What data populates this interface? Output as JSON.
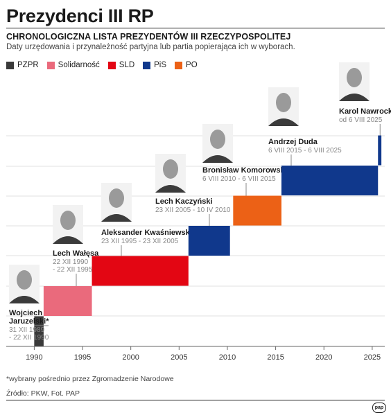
{
  "header": {
    "title": "Prezydenci III RP",
    "subtitle": "CHRONOLOGICZNA LISTA PREZYDENTÓW III RZECZYPOSPOLITEJ",
    "description": "Daty urzędowania i przynależność partyjna lub partia popierająca ich w wyborach."
  },
  "legend": [
    {
      "label": "PZPR",
      "color": "#3a3a3a"
    },
    {
      "label": "Solidarność",
      "color": "#ea6a7c"
    },
    {
      "label": "SLD",
      "color": "#e30613"
    },
    {
      "label": "PiS",
      "color": "#10388c"
    },
    {
      "label": "PO",
      "color": "#ec6116"
    }
  ],
  "chart_data": {
    "type": "bar",
    "orientation": "horizontal-timeline",
    "x_ticks": [
      1990,
      1995,
      2000,
      2005,
      2010,
      2015,
      2020,
      2025
    ],
    "xlim": [
      1987.1,
      2026.3
    ],
    "grid": true,
    "series": [
      {
        "president": "Wojciech Jaruzelski*",
        "name_lines": [
          "Wojciech",
          "Jaruzelski*"
        ],
        "date_lines": [
          "31 XII 1989",
          "- 22 XII 1990"
        ],
        "party": "PZPR",
        "color": "#3a3a3a",
        "start": 1989.997,
        "end": 1990.97
      },
      {
        "president": "Lech Wałęsa",
        "name_lines": [
          "Lech Wałęsa"
        ],
        "date_lines": [
          "22 XII 1990",
          "- 22 XII 1995"
        ],
        "party": "Solidarność",
        "color": "#ea6a7c",
        "start": 1990.97,
        "end": 1995.97
      },
      {
        "president": "Aleksander Kwaśniewski",
        "name_lines": [
          "Aleksander Kwaśniewski"
        ],
        "date_lines": [
          "23 XII 1995 - 23 XII 2005"
        ],
        "party": "SLD",
        "color": "#e30613",
        "start": 1995.97,
        "end": 2005.97
      },
      {
        "president": "Lech Kaczyński",
        "name_lines": [
          "Lech Kaczyński"
        ],
        "date_lines": [
          "23 XII 2005 - 10 IV 2010"
        ],
        "party": "PiS",
        "color": "#10388c",
        "start": 2005.97,
        "end": 2010.27
      },
      {
        "president": "Bronisław Komorowski",
        "name_lines": [
          "Bronisław Komorowski"
        ],
        "date_lines": [
          "6 VIII 2010 - 6 VIII 2015"
        ],
        "party": "PO",
        "color": "#ec6116",
        "start": 2010.6,
        "end": 2015.6
      },
      {
        "president": "Andrzej Duda",
        "name_lines": [
          "Andrzej Duda"
        ],
        "date_lines": [
          "6 VIII 2015 - 6 VIII 2025"
        ],
        "party": "PiS",
        "color": "#10388c",
        "start": 2015.6,
        "end": 2025.6
      },
      {
        "president": "Karol Nawrocki",
        "name_lines": [
          "Karol Nawrocki"
        ],
        "date_lines": [
          "od 6 VIII 2025"
        ],
        "party": "PiS",
        "color": "#10388c",
        "start": 2025.6,
        "end": 2025.95
      }
    ]
  },
  "footnote": "*wybrany pośrednio przez Zgromadzenie Narodowe",
  "source": "Źródło: PKW, Fot. PAP",
  "brand": "pap"
}
